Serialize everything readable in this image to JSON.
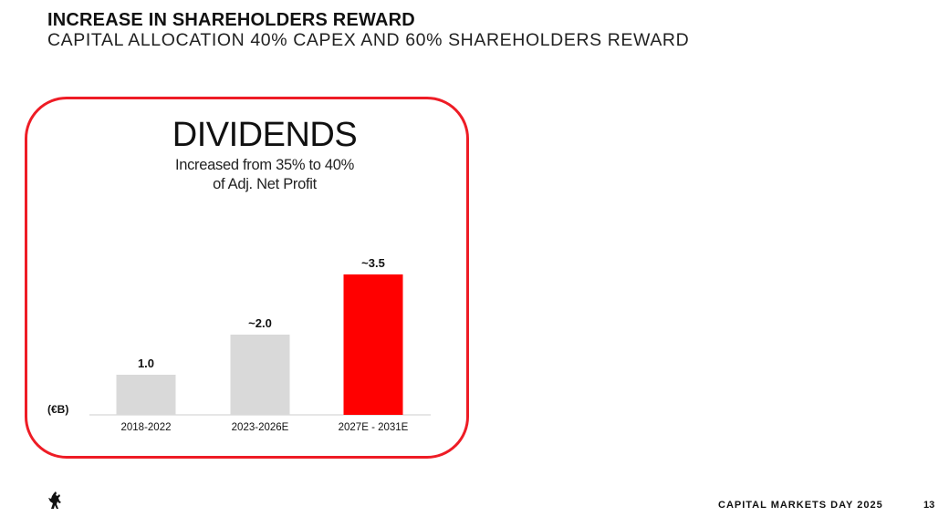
{
  "header": {
    "title": "INCREASE IN SHAREHOLDERS REWARD",
    "subtitle": "CAPITAL ALLOCATION 40% CAPEX AND 60% SHAREHOLDERS REWARD"
  },
  "card": {
    "title": "DIVIDENDS",
    "subtitle_line1": "Increased from 35% to 40%",
    "subtitle_line2": "of Adj. Net Profit"
  },
  "chart_data": {
    "type": "bar",
    "title": "DIVIDENDS",
    "categories": [
      "2018-2022",
      "2023-2026E",
      "2027E - 2031E"
    ],
    "values": [
      1.0,
      2.0,
      3.5
    ],
    "value_labels": [
      "1.0",
      "~2.0",
      "~3.5"
    ],
    "unit_label": "(€B)",
    "ylim": [
      0,
      3.5
    ],
    "grid": false,
    "colors": [
      "#d9d9d9",
      "#d9d9d9",
      "#ff0000"
    ]
  },
  "footer": {
    "logo_icon": "prancing-horse-icon",
    "event": "CAPITAL MARKETS DAY 2025",
    "page": "13"
  }
}
